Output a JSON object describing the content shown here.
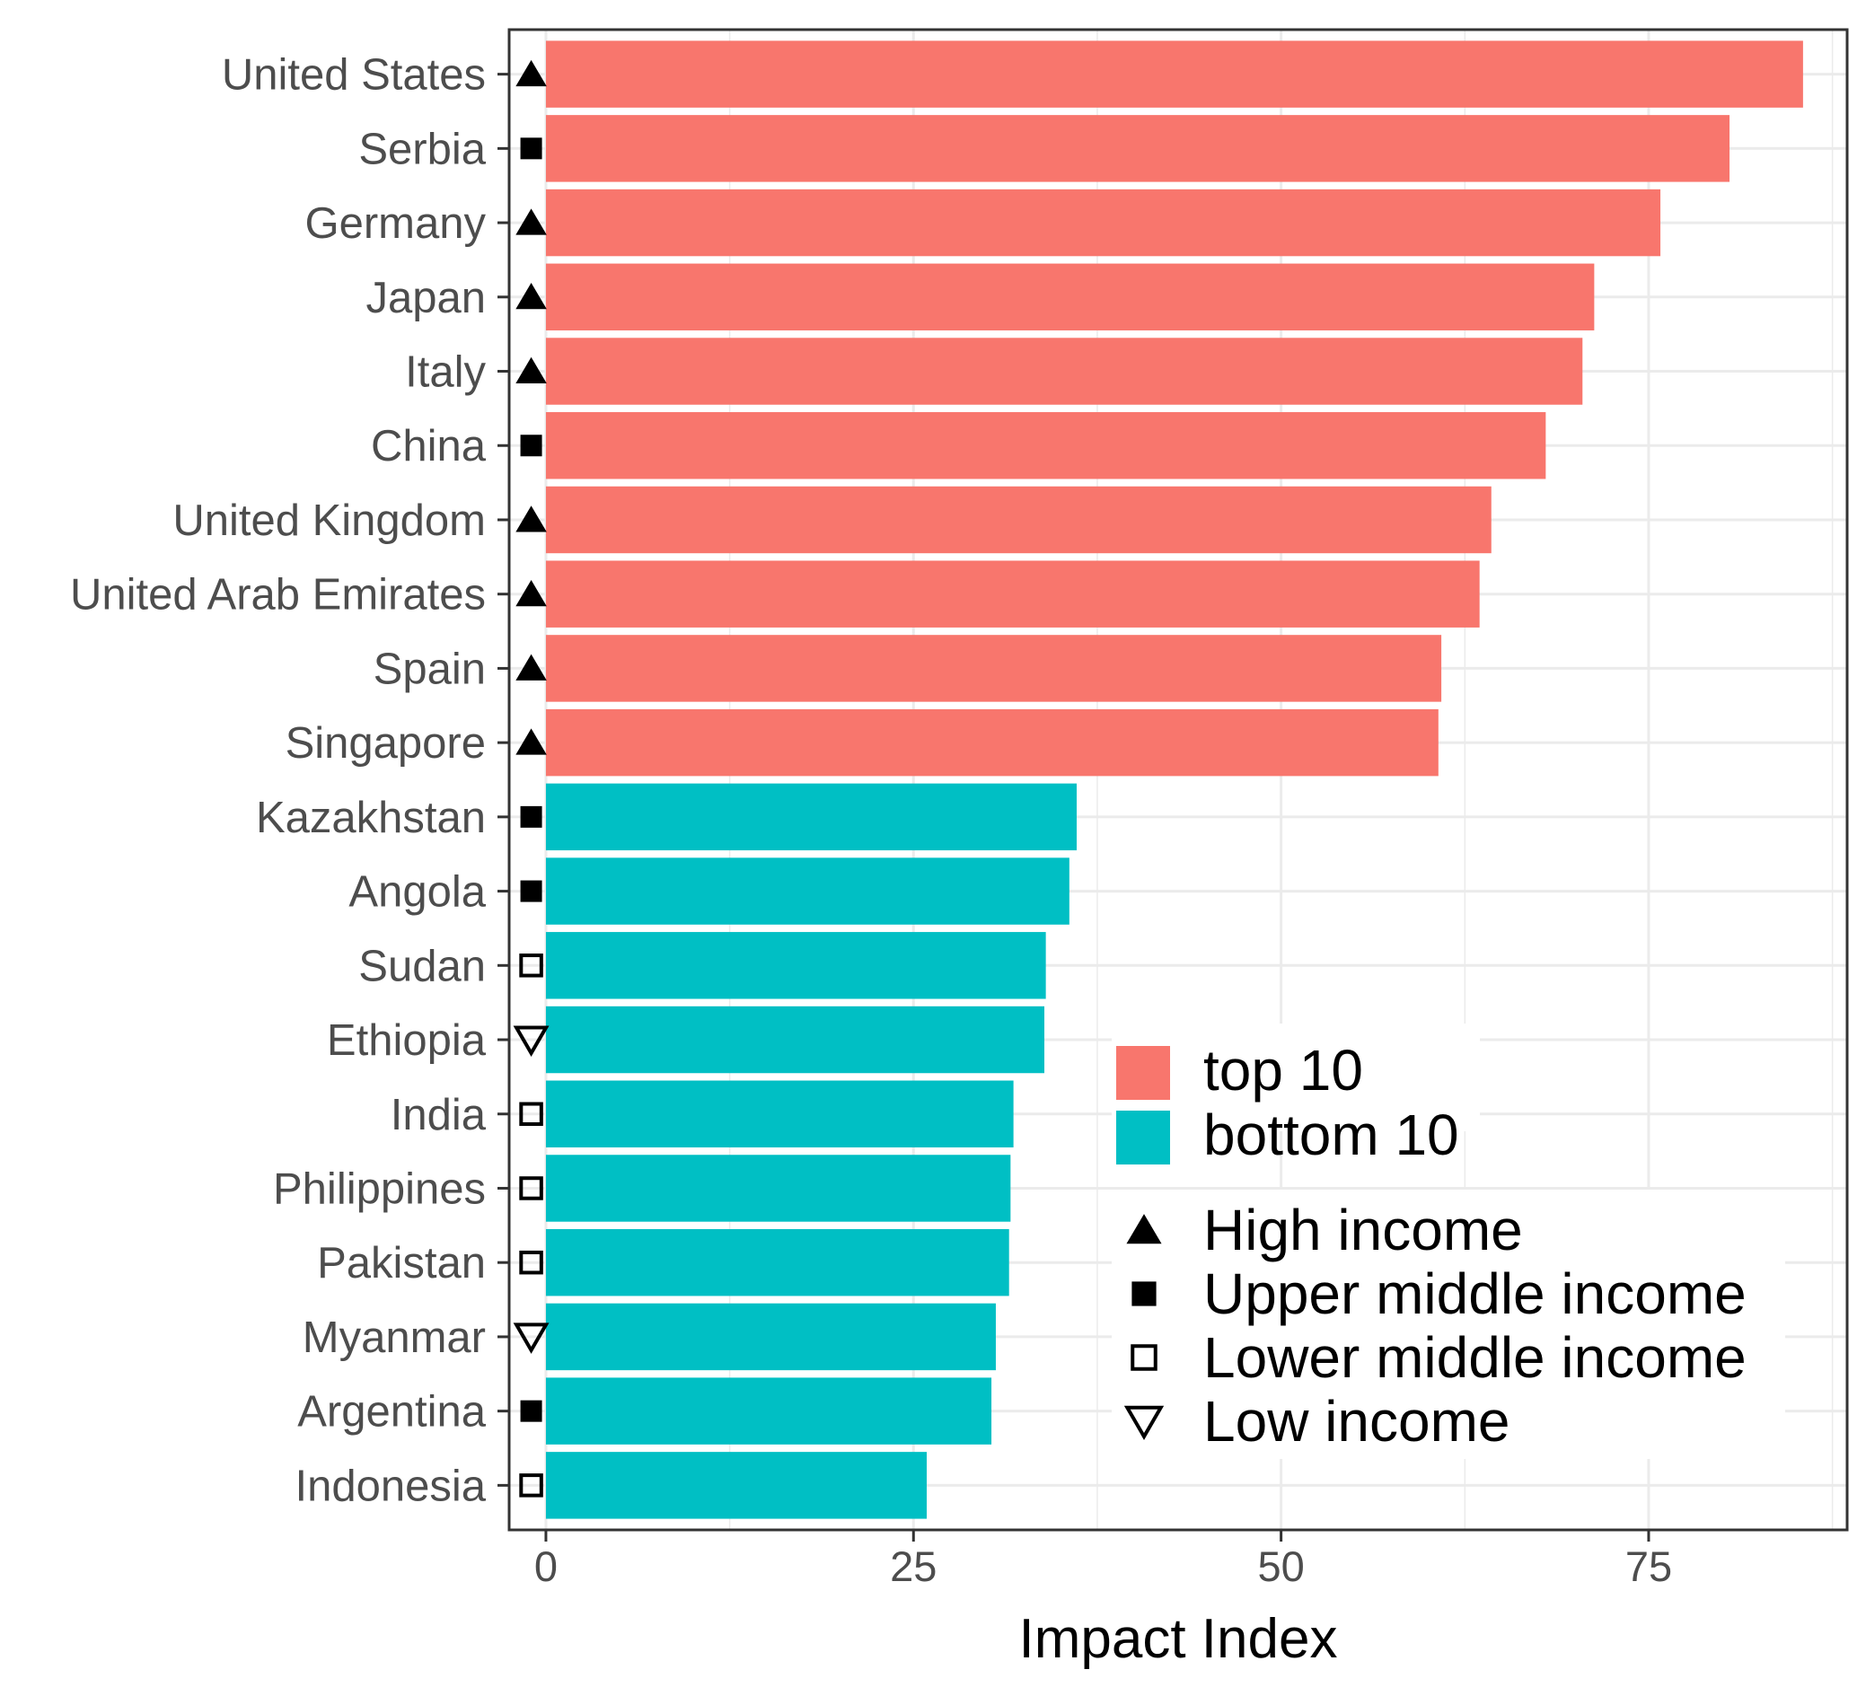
{
  "chart_data": {
    "type": "bar",
    "orientation": "horizontal",
    "xlabel": "Impact Index",
    "ylabel": "",
    "xlim": [
      -2.5,
      88.5
    ],
    "x_ticks": [
      0,
      25,
      50,
      75
    ],
    "grid": true,
    "legend_position": "bottom-right inside plot",
    "categories": [
      "United States",
      "Serbia",
      "Germany",
      "Japan",
      "Italy",
      "China",
      "United Kingdom",
      "United Arab Emirates",
      "Spain",
      "Singapore",
      "Kazakhstan",
      "Angola",
      "Sudan",
      "Ethiopia",
      "India",
      "Philippines",
      "Pakistan",
      "Myanmar",
      "Argentina",
      "Indonesia"
    ],
    "values": [
      85.5,
      80.5,
      75.8,
      71.3,
      70.5,
      68.0,
      64.3,
      63.5,
      60.9,
      60.7,
      36.1,
      35.6,
      34.0,
      33.9,
      31.8,
      31.6,
      31.5,
      30.6,
      30.3,
      25.9
    ],
    "group": [
      "top 10",
      "top 10",
      "top 10",
      "top 10",
      "top 10",
      "top 10",
      "top 10",
      "top 10",
      "top 10",
      "top 10",
      "bottom 10",
      "bottom 10",
      "bottom 10",
      "bottom 10",
      "bottom 10",
      "bottom 10",
      "bottom 10",
      "bottom 10",
      "bottom 10",
      "bottom 10"
    ],
    "income": [
      "High income",
      "Upper middle income",
      "High income",
      "High income",
      "High income",
      "Upper middle income",
      "High income",
      "High income",
      "High income",
      "High income",
      "Upper middle income",
      "Upper middle income",
      "Lower middle income",
      "Low income",
      "Lower middle income",
      "Lower middle income",
      "Lower middle income",
      "Low income",
      "Upper middle income",
      "Lower middle income"
    ],
    "legend_fill": [
      {
        "name": "top 10",
        "color": "#F8766D"
      },
      {
        "name": "bottom 10",
        "color": "#00BFC4"
      }
    ],
    "legend_shape": [
      {
        "name": "High income",
        "shape": "triangle-up-filled"
      },
      {
        "name": "Upper middle income",
        "shape": "square-filled"
      },
      {
        "name": "Lower middle income",
        "shape": "square-open"
      },
      {
        "name": "Low income",
        "shape": "triangle-down-open"
      }
    ]
  }
}
